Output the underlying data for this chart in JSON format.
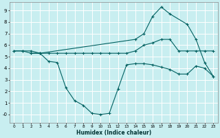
{
  "xlabel": "Humidex (Indice chaleur)",
  "bg_color": "#c8eef0",
  "line_color": "#006060",
  "grid_color": "#ffffff",
  "xlim": [
    -0.5,
    23.5
  ],
  "ylim": [
    -0.7,
    9.7
  ],
  "xticks": [
    0,
    1,
    2,
    3,
    4,
    5,
    6,
    7,
    8,
    9,
    10,
    11,
    12,
    13,
    14,
    15,
    16,
    17,
    18,
    19,
    20,
    21,
    22,
    23
  ],
  "yticks": [
    0,
    1,
    2,
    3,
    4,
    5,
    6,
    7,
    8,
    9
  ],
  "ytick_labels": [
    "-0",
    "1",
    "2",
    "3",
    "4",
    "5",
    "6",
    "7",
    "8",
    "9"
  ],
  "line1_x": [
    0,
    1,
    2,
    3,
    4,
    5,
    6,
    7,
    8,
    9,
    10,
    11,
    12,
    13,
    14,
    15,
    16,
    17,
    18,
    19,
    20,
    21,
    22,
    23
  ],
  "line1_y": [
    5.5,
    5.5,
    5.5,
    5.3,
    5.3,
    5.3,
    5.3,
    5.3,
    5.3,
    5.3,
    5.3,
    5.3,
    5.3,
    5.3,
    5.5,
    6.0,
    6.2,
    6.5,
    6.5,
    5.5,
    5.5,
    5.5,
    5.5,
    5.5
  ],
  "line2_x": [
    0,
    1,
    2,
    3,
    4,
    5,
    6,
    7,
    8,
    9,
    10,
    11,
    12,
    13,
    14,
    15,
    16,
    17,
    18,
    19,
    20,
    21,
    22,
    23
  ],
  "line2_y": [
    5.5,
    5.5,
    5.3,
    5.3,
    4.6,
    4.5,
    2.3,
    1.2,
    0.8,
    0.1,
    0.0,
    0.1,
    2.2,
    4.3,
    4.4,
    4.4,
    4.3,
    4.1,
    3.9,
    3.5,
    3.5,
    4.2,
    4.0,
    3.3
  ],
  "line3_x": [
    2,
    3,
    14,
    15,
    16,
    17,
    18,
    20,
    21,
    22,
    23
  ],
  "line3_y": [
    5.3,
    5.3,
    6.5,
    7.0,
    8.5,
    9.3,
    8.7,
    7.8,
    6.5,
    4.5,
    3.3
  ]
}
